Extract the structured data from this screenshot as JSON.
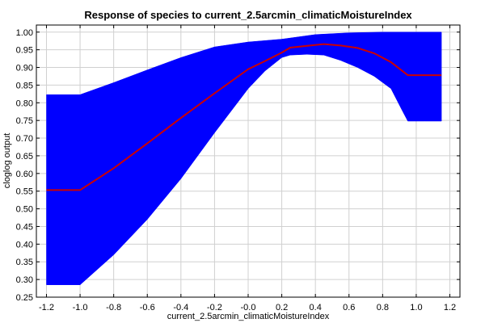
{
  "chart_data": {
    "type": "area",
    "title": "Response of species to current_2.5arcmin_climaticMoistureIndex",
    "xlabel": "current_2.5arcmin_climaticMoistureIndex",
    "ylabel": "cloglog output",
    "xlim": [
      -1.26,
      1.26
    ],
    "ylim": [
      0.25,
      1.02
    ],
    "x_ticks": [
      -1.2,
      -1.0,
      -0.8,
      -0.6,
      -0.4,
      -0.2,
      -0.0,
      0.2,
      0.4,
      0.6,
      0.8,
      1.0,
      1.2
    ],
    "x_tick_labels": [
      "-1.2",
      "-1.0",
      "-0.8",
      "-0.6",
      "-0.4",
      "-0.2",
      "-0.0",
      "0.2",
      "0.4",
      "0.6",
      "0.8",
      "1.0",
      "1.2"
    ],
    "y_ticks": [
      0.25,
      0.3,
      0.35,
      0.4,
      0.45,
      0.5,
      0.55,
      0.6,
      0.65,
      0.7,
      0.75,
      0.8,
      0.85,
      0.9,
      0.95,
      1.0
    ],
    "y_tick_labels": [
      "0.25",
      "0.30",
      "0.35",
      "0.40",
      "0.45",
      "0.50",
      "0.55",
      "0.60",
      "0.65",
      "0.70",
      "0.75",
      "0.80",
      "0.85",
      "0.90",
      "0.95",
      "1.00"
    ],
    "grid": true,
    "colors": {
      "band": "#0000ff",
      "mean_line": "#cc0000"
    },
    "series": [
      {
        "role": "mean",
        "x": [
          -1.2,
          -1.0,
          -0.8,
          -0.6,
          -0.4,
          -0.2,
          0.0,
          0.1,
          0.2,
          0.25,
          0.35,
          0.45,
          0.55,
          0.65,
          0.75,
          0.85,
          0.95,
          1.05,
          1.15
        ],
        "y": [
          0.553,
          0.553,
          0.615,
          0.685,
          0.757,
          0.827,
          0.895,
          0.918,
          0.942,
          0.956,
          0.961,
          0.966,
          0.962,
          0.955,
          0.94,
          0.915,
          0.878,
          0.878,
          0.878
        ]
      },
      {
        "role": "upper",
        "x": [
          -1.2,
          -1.0,
          -0.8,
          -0.6,
          -0.4,
          -0.2,
          0.0,
          0.2,
          0.4,
          0.6,
          0.8,
          0.95,
          1.0,
          1.15
        ],
        "y": [
          0.823,
          0.823,
          0.857,
          0.893,
          0.928,
          0.958,
          0.972,
          0.98,
          0.993,
          0.998,
          1.0,
          1.0,
          1.0,
          1.0
        ]
      },
      {
        "role": "lower",
        "x": [
          -1.2,
          -1.0,
          -0.8,
          -0.6,
          -0.4,
          -0.2,
          0.0,
          0.1,
          0.2,
          0.25,
          0.35,
          0.45,
          0.55,
          0.65,
          0.75,
          0.85,
          0.92,
          0.95,
          1.05,
          1.15
        ],
        "y": [
          0.285,
          0.285,
          0.37,
          0.47,
          0.585,
          0.715,
          0.84,
          0.89,
          0.928,
          0.935,
          0.937,
          0.935,
          0.92,
          0.9,
          0.875,
          0.84,
          0.775,
          0.748,
          0.748,
          0.748
        ]
      }
    ]
  }
}
